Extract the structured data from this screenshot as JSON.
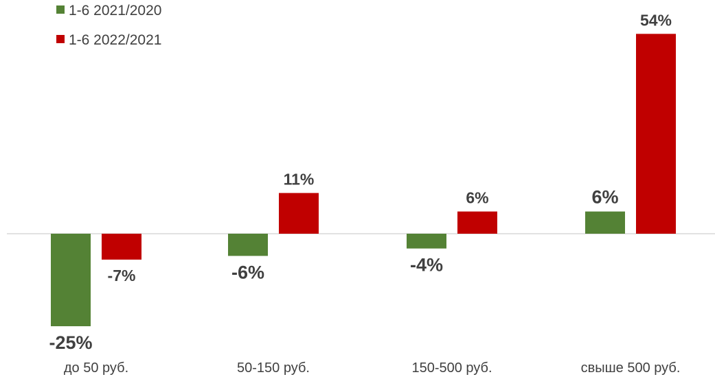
{
  "chart_data": {
    "type": "bar",
    "categories": [
      "до 50 руб.",
      "50-150 руб.",
      "150-500 руб.",
      "свыше 500 руб."
    ],
    "series": [
      {
        "name": "1-6 2021/2020",
        "values": [
          -25,
          -6,
          -4,
          6
        ],
        "labels": [
          "-25%",
          "-6%",
          "-4%",
          "6%"
        ],
        "color": "#548235"
      },
      {
        "name": "1-6 2022/2021",
        "values": [
          -7,
          11,
          6,
          54
        ],
        "labels": [
          "-7%",
          "11%",
          "6%",
          "54%"
        ],
        "color": "#c00000"
      }
    ],
    "ylim": [
      -28,
      55
    ],
    "grid": false,
    "legend_position": "top-left"
  }
}
